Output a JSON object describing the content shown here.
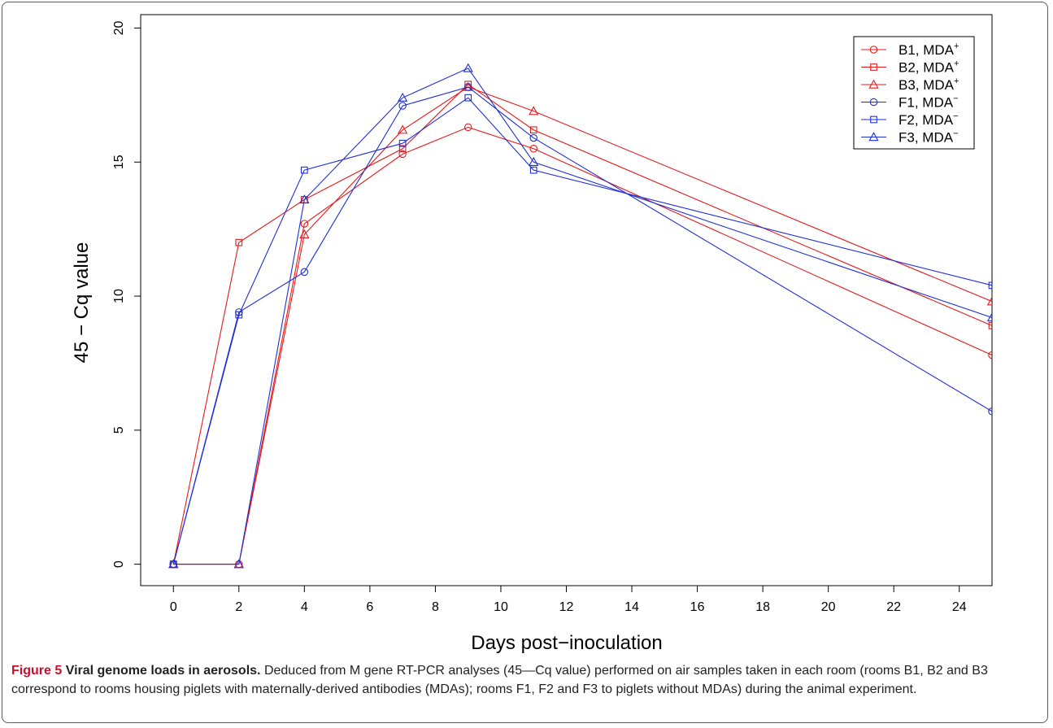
{
  "colors": {
    "red_series": "#e41a1c",
    "blue_series": "#1f2fd6",
    "figure_label": "#c8102e"
  },
  "caption": {
    "figure_label": "Figure 5",
    "title": "Viral genome loads in aerosols.",
    "text": "Deduced from M gene RT-PCR analyses (45—Cq value) performed on air samples taken in each room (rooms B1, B2 and B3 correspond to rooms housing piglets with maternally-derived antibodies (MDAs); rooms F1, F2 and F3 to piglets without MDAs) during the animal experiment."
  },
  "chart_data": {
    "type": "line",
    "title": "",
    "xlabel": "Days post−inoculation",
    "ylabel": "45 − Cq value",
    "xlim": [
      -1,
      25
    ],
    "ylim": [
      -0.8,
      20.5
    ],
    "xticks": [
      0,
      2,
      4,
      6,
      8,
      10,
      12,
      14,
      16,
      18,
      20,
      22,
      24
    ],
    "yticks": [
      0,
      5,
      10,
      15,
      20
    ],
    "grid": false,
    "legend_position": "top-right",
    "series": [
      {
        "name": "B1, MDA",
        "sup": "+",
        "color": "#e41a1c",
        "marker": "circle",
        "x": [
          0,
          2,
          4,
          7,
          9,
          11,
          25
        ],
        "y": [
          0,
          0,
          12.7,
          15.3,
          16.3,
          15.5,
          7.8
        ]
      },
      {
        "name": "B2, MDA",
        "sup": "+",
        "color": "#e41a1c",
        "marker": "square",
        "x": [
          0,
          2,
          4,
          7,
          9,
          11,
          25
        ],
        "y": [
          0,
          12.0,
          13.6,
          15.5,
          17.9,
          16.2,
          8.9
        ]
      },
      {
        "name": "B3, MDA",
        "sup": "+",
        "color": "#e41a1c",
        "marker": "triangle",
        "x": [
          0,
          2,
          4,
          7,
          9,
          11,
          25
        ],
        "y": [
          0,
          0,
          12.3,
          16.2,
          17.8,
          16.9,
          9.8
        ]
      },
      {
        "name": "F1, MDA",
        "sup": "−",
        "color": "#1f2fd6",
        "marker": "circle",
        "x": [
          0,
          2,
          4,
          7,
          9,
          11,
          25
        ],
        "y": [
          0,
          9.4,
          10.9,
          17.1,
          17.8,
          15.9,
          5.7
        ]
      },
      {
        "name": "F2, MDA",
        "sup": "−",
        "color": "#1f2fd6",
        "marker": "square",
        "x": [
          0,
          2,
          4,
          7,
          9,
          11,
          25
        ],
        "y": [
          0,
          9.3,
          14.7,
          15.7,
          17.4,
          14.7,
          10.4
        ]
      },
      {
        "name": "F3, MDA",
        "sup": "−",
        "color": "#1f2fd6",
        "marker": "triangle",
        "x": [
          0,
          2,
          4,
          7,
          9,
          11,
          25
        ],
        "y": [
          0,
          0,
          13.6,
          17.4,
          18.5,
          15.0,
          9.2
        ]
      }
    ]
  }
}
